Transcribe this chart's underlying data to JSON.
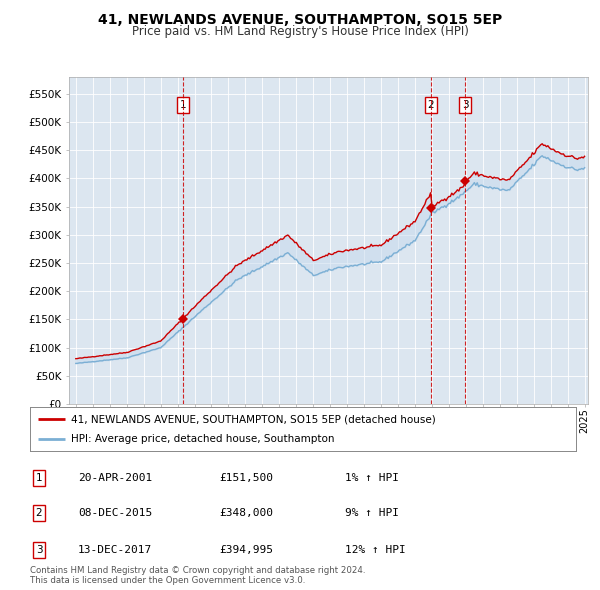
{
  "title": "41, NEWLANDS AVENUE, SOUTHAMPTON, SO15 5EP",
  "subtitle": "Price paid vs. HM Land Registry's House Price Index (HPI)",
  "plot_bg_color": "#dce6f0",
  "ylim": [
    0,
    580000
  ],
  "yticks": [
    0,
    50000,
    100000,
    150000,
    200000,
    250000,
    300000,
    350000,
    400000,
    450000,
    500000,
    550000
  ],
  "ytick_labels": [
    "£0",
    "£50K",
    "£100K",
    "£150K",
    "£200K",
    "£250K",
    "£300K",
    "£350K",
    "£400K",
    "£450K",
    "£500K",
    "£550K"
  ],
  "purchase_dates_float": [
    2001.304,
    2015.935,
    2017.952
  ],
  "purchase_prices": [
    151500,
    348000,
    394995
  ],
  "purchase_labels": [
    "1",
    "2",
    "3"
  ],
  "legend_line1": "41, NEWLANDS AVENUE, SOUTHAMPTON, SO15 5EP (detached house)",
  "legend_line2": "HPI: Average price, detached house, Southampton",
  "table_rows": [
    {
      "num": "1",
      "date": "20-APR-2001",
      "price": "£151,500",
      "change": "1% ↑ HPI"
    },
    {
      "num": "2",
      "date": "08-DEC-2015",
      "price": "£348,000",
      "change": "9% ↑ HPI"
    },
    {
      "num": "3",
      "date": "13-DEC-2017",
      "price": "£394,995",
      "change": "12% ↑ HPI"
    }
  ],
  "footer": "Contains HM Land Registry data © Crown copyright and database right 2024.\nThis data is licensed under the Open Government Licence v3.0.",
  "line_color_red": "#cc0000",
  "line_color_blue": "#7bafd4",
  "line_color_blue_fill": "#c5d9ed",
  "vline_color": "#cc0000",
  "grid_color": "#ffffff",
  "hpi_anchors_years": [
    1995.0,
    1998.0,
    2000.0,
    2002.5,
    2004.5,
    2007.5,
    2009.0,
    2010.5,
    2013.0,
    2015.0,
    2016.0,
    2017.5,
    2018.5,
    2019.5,
    2020.5,
    2021.5,
    2022.5,
    2023.5,
    2024.5,
    2025.0
  ],
  "hpi_anchors_vals": [
    72000,
    82000,
    100000,
    168000,
    220000,
    268000,
    228000,
    242000,
    252000,
    290000,
    338000,
    365000,
    390000,
    383000,
    378000,
    408000,
    440000,
    425000,
    415000,
    418000
  ]
}
